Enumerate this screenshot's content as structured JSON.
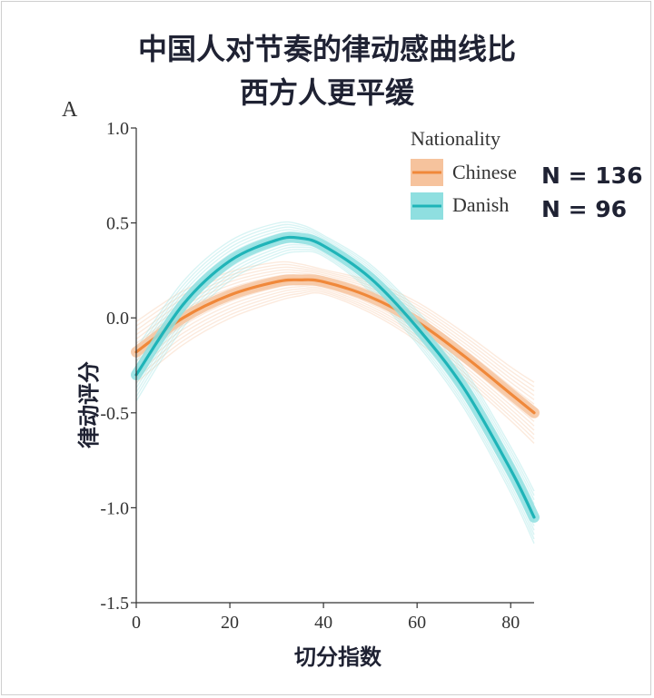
{
  "title_lines": [
    "中国人对节奏的律动感曲线比",
    "西方人更平缓"
  ],
  "chart_data": {
    "type": "line",
    "panel_letter": "A",
    "xlabel": "切分指数",
    "ylabel": "律动评分",
    "xlim": [
      0,
      85
    ],
    "ylim": [
      -1.5,
      1.0
    ],
    "x_ticks": [
      0,
      20,
      40,
      60,
      80
    ],
    "y_ticks": [
      1.0,
      0.5,
      0.0,
      -0.5,
      -1.0,
      -1.5
    ],
    "y_tick_labels": [
      "1.0",
      "0.5",
      "0.0",
      "-0.5",
      "-1.0",
      "-1.5"
    ],
    "legend": {
      "title": "Nationality",
      "position": "top-right"
    },
    "x": [
      0,
      10,
      20,
      30,
      35,
      40,
      50,
      60,
      70,
      80,
      85
    ],
    "series": [
      {
        "name": "Chinese",
        "count_label": "N = 136",
        "color": "#f0883a",
        "band_color": "#f6c39d",
        "values": [
          -0.18,
          0.0,
          0.12,
          0.19,
          0.2,
          0.19,
          0.11,
          -0.02,
          -0.2,
          -0.4,
          -0.5
        ]
      },
      {
        "name": "Danish",
        "count_label": "N = 96",
        "color": "#1fb4b8",
        "band_color": "#8fdfe0",
        "values": [
          -0.3,
          0.07,
          0.3,
          0.41,
          0.42,
          0.38,
          0.21,
          -0.05,
          -0.37,
          -0.8,
          -1.05
        ]
      }
    ]
  }
}
